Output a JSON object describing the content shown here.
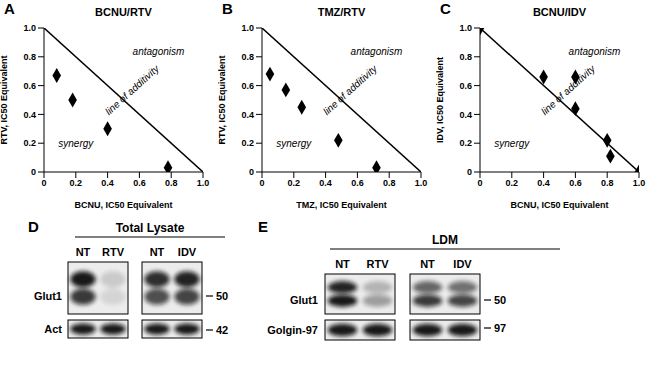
{
  "chart_data": [
    {
      "type": "scatter",
      "panel": "A",
      "title": "BCNU/RTV",
      "x_label": "BCNU, IC50 Equivalent",
      "y_label": "RTV, IC50 Equivalent",
      "xlim": [
        0,
        1
      ],
      "ylim": [
        0,
        1
      ],
      "xticks": [
        0,
        0.2,
        0.4,
        0.6,
        0.8,
        {
          "value": 1,
          "label": "1.0"
        }
      ],
      "yticks": [
        0,
        0.2,
        0.4,
        0.6,
        0.8,
        {
          "value": 1,
          "label": "1.0"
        }
      ],
      "grid": false,
      "annotations": [
        "antagonism",
        "line of additivity",
        "synergy"
      ],
      "series": [
        {
          "type": "scatter",
          "marker": "diamond",
          "color": "#000000",
          "x": [
            0.08,
            0.18,
            0.4,
            0.78
          ],
          "values": [
            0.67,
            0.5,
            0.3,
            0.03
          ]
        },
        {
          "type": "line",
          "line_style": "solid",
          "color": "#000000",
          "x": [
            0,
            1
          ],
          "values": [
            1,
            0
          ]
        }
      ]
    },
    {
      "type": "scatter",
      "panel": "B",
      "title": "TMZ/RTV",
      "x_label": "TMZ, IC50 Equivalent",
      "y_label": "RTV, IC50 Equivalent",
      "xlim": [
        0,
        1
      ],
      "ylim": [
        0,
        1
      ],
      "xticks": [
        0,
        0.2,
        0.4,
        0.6,
        0.8,
        {
          "value": 1,
          "label": "1.0"
        }
      ],
      "yticks": [
        0,
        0.2,
        0.4,
        0.6,
        0.8,
        {
          "value": 1,
          "label": "1.0"
        }
      ],
      "grid": false,
      "annotations": [
        "antagonism",
        "line of additivity",
        "synergy"
      ],
      "series": [
        {
          "type": "scatter",
          "marker": "diamond",
          "color": "#000000",
          "x": [
            0.05,
            0.15,
            0.25,
            0.48,
            0.72
          ],
          "values": [
            0.68,
            0.57,
            0.45,
            0.22,
            0.03
          ]
        },
        {
          "type": "line",
          "line_style": "solid",
          "color": "#000000",
          "x": [
            0,
            1
          ],
          "values": [
            1,
            0
          ]
        }
      ]
    },
    {
      "type": "scatter",
      "panel": "C",
      "title": "BCNU/IDV",
      "x_label": "BCNU, IC50 Equivalent",
      "y_label": "IDV, IC50 Equivalent",
      "xlim": [
        0,
        1
      ],
      "ylim": [
        0,
        1
      ],
      "xticks": [
        0,
        0.2,
        0.4,
        0.6,
        0.8,
        {
          "value": 1,
          "label": "1.0"
        }
      ],
      "yticks": [
        0,
        0.2,
        0.4,
        0.6,
        0.8,
        {
          "value": 1,
          "label": "1.0"
        }
      ],
      "grid": false,
      "annotations": [
        "antagonism",
        "line of additivity",
        "synergy"
      ],
      "series": [
        {
          "type": "scatter",
          "marker": "diamond",
          "color": "#000000",
          "x": [
            0,
            0.4,
            0.6,
            0.6,
            0.8,
            0.82,
            1
          ],
          "values": [
            1,
            0.66,
            0.66,
            0.44,
            0.22,
            0.11,
            0
          ]
        },
        {
          "type": "line",
          "line_style": "solid",
          "color": "#000000",
          "x": [
            0,
            1
          ],
          "values": [
            1,
            0
          ]
        }
      ]
    }
  ],
  "blots": [
    {
      "panel": "D",
      "title": "Total Lysate",
      "groups": [
        {
          "lanes": [
            "NT",
            "RTV"
          ]
        },
        {
          "lanes": [
            "NT",
            "IDV"
          ]
        }
      ],
      "rows": [
        {
          "label": "Glut1",
          "marker": 50
        },
        {
          "label": "Act",
          "marker": 42
        }
      ]
    },
    {
      "panel": "E",
      "title": "LDM",
      "groups": [
        {
          "lanes": [
            "NT",
            "RTV"
          ]
        },
        {
          "lanes": [
            "NT",
            "IDV"
          ]
        }
      ],
      "rows": [
        {
          "label": "Glut1",
          "marker": 50
        },
        {
          "label": "Golgin-97",
          "marker": 97
        }
      ]
    }
  ]
}
